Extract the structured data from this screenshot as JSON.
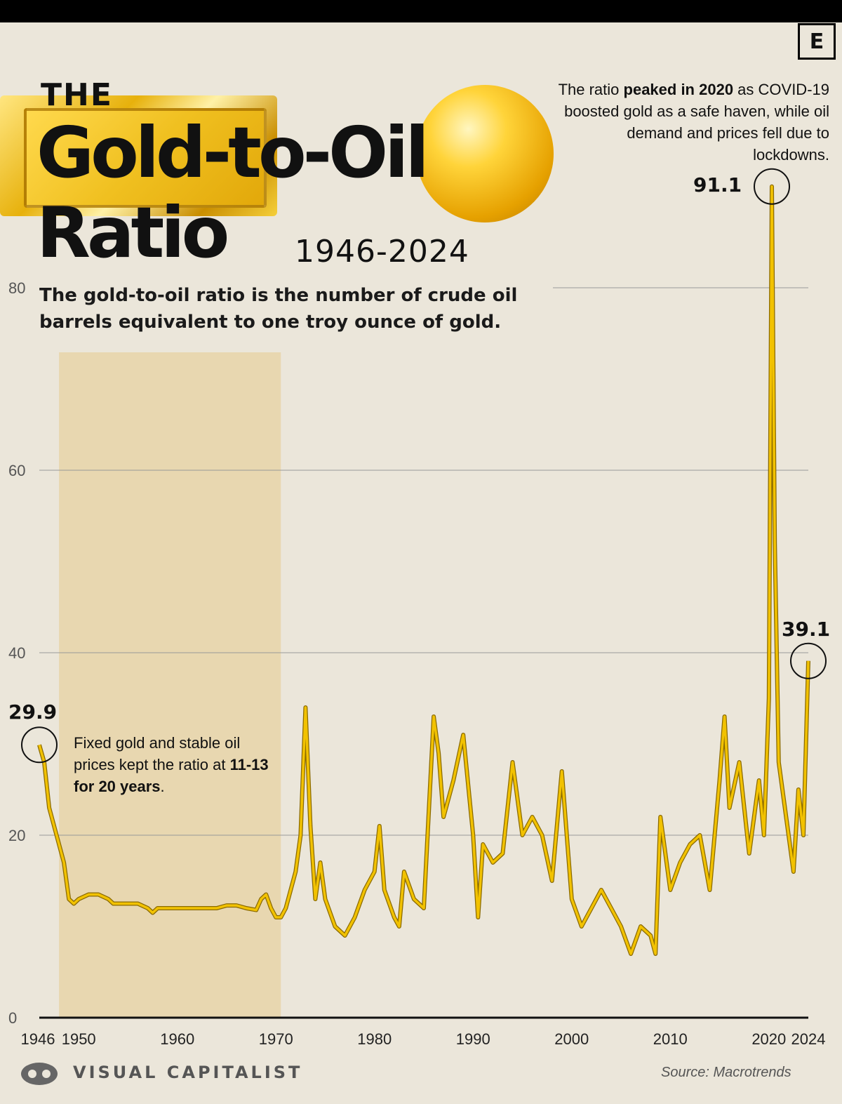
{
  "header": {
    "the": "THE",
    "title_line1": "Gold-to-Oil",
    "title_line2": "Ratio",
    "years": "1946-2024",
    "subtitle": "The gold-to-oil ratio is the number of crude oil barrels equivalent to one troy ounce of gold."
  },
  "logo_letter": "E",
  "annotations": {
    "peak_pre": "The ratio ",
    "peak_bold": "peaked in 2020",
    "peak_post": " as COVID-19 boosted gold as a safe haven, while oil demand and prices fell due to lockdowns.",
    "fixed_pre": "Fixed gold and stable oil prices kept the ratio at ",
    "fixed_bold": "11-13 for 20 years",
    "fixed_post": "."
  },
  "callouts": {
    "start": "29.9",
    "peak": "91.1",
    "end": "39.1"
  },
  "footer": {
    "brand": "VISUAL CAPITALIST",
    "source": "Source: Macrotrends"
  },
  "colors": {
    "line": "#f2c200",
    "line_dark": "#8a6a00",
    "shade": "#e8d3a8",
    "grid": "#999999"
  },
  "chart_data": {
    "type": "line",
    "title": "The Gold-to-Oil Ratio",
    "ylim": [
      0,
      92
    ],
    "yticks": [
      0,
      20,
      40,
      60,
      80
    ],
    "xticks": [
      "1946",
      "1950",
      "1960",
      "1970",
      "1980",
      "1990",
      "2000",
      "2010",
      "2020",
      "2024"
    ],
    "shaded_period": [
      1948,
      1970.5
    ],
    "series": [
      {
        "x": [
          1946,
          1946.5,
          1947,
          1947.5,
          1948,
          1948.5,
          1949,
          1949.5,
          1950,
          1951,
          1952,
          1953,
          1953.5,
          1954,
          1955,
          1956,
          1957,
          1957.5,
          1958,
          1959,
          1960,
          1961,
          1962,
          1963,
          1964,
          1965,
          1966,
          1967,
          1968,
          1968.5,
          1969,
          1969.5,
          1970,
          1970.5,
          1971,
          1972,
          1972.5,
          1973,
          1973.5,
          1974,
          1974.5,
          1975,
          1976,
          1977,
          1978,
          1979,
          1980,
          1980.5,
          1981,
          1982,
          1982.5,
          1983,
          1984,
          1985,
          1986,
          1986.5,
          1987,
          1988,
          1989,
          1990,
          1990.5,
          1991,
          1992,
          1993,
          1994,
          1995,
          1996,
          1997,
          1998,
          1999,
          2000,
          2001,
          2002,
          2003,
          2004,
          2005,
          2006,
          2007,
          2008,
          2008.5,
          2009,
          2010,
          2011,
          2012,
          2013,
          2014,
          2015,
          2015.5,
          2016,
          2017,
          2018,
          2019,
          2019.5,
          2020,
          2020.3,
          2020.6,
          2021,
          2022,
          2022.5,
          2023,
          2023.5,
          2024
        ],
        "values": [
          29.9,
          28,
          23,
          21,
          19,
          17,
          13,
          12.5,
          13,
          13.5,
          13.5,
          13,
          12.5,
          12.5,
          12.5,
          12.5,
          12,
          11.5,
          12,
          12,
          12,
          12,
          12,
          12,
          12,
          12.3,
          12.3,
          12,
          11.8,
          13,
          13.5,
          12,
          11,
          11,
          12,
          16,
          20,
          34,
          21,
          13,
          17,
          13,
          10,
          9,
          11,
          14,
          16,
          21,
          14,
          11,
          10,
          16,
          13,
          12,
          33,
          29,
          22,
          26,
          31,
          20,
          11,
          19,
          17,
          18,
          28,
          20,
          22,
          20,
          15,
          27,
          13,
          10,
          12,
          14,
          12,
          10,
          7,
          10,
          9,
          7,
          22,
          14,
          17,
          19,
          20,
          14,
          26,
          33,
          23,
          28,
          18,
          26,
          20,
          35,
          91.1,
          52,
          28,
          20,
          16,
          25,
          20,
          39.1
        ]
      }
    ]
  }
}
